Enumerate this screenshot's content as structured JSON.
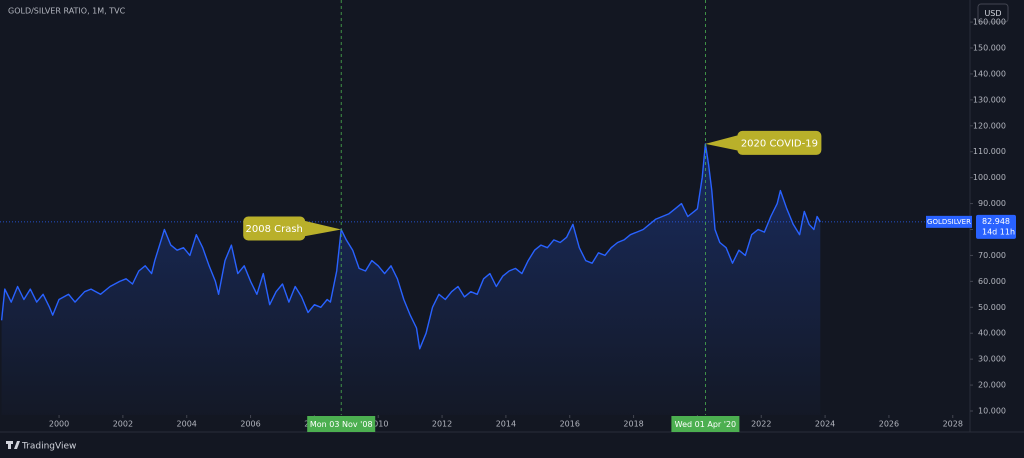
{
  "chart_data": {
    "type": "line",
    "title": "GOLD/SILVER RATIO, 1M, TVC",
    "currency": "USD",
    "brand": "TradingView",
    "x": [
      1998.2,
      1998.3,
      1998.5,
      1998.7,
      1998.9,
      1999.1,
      1999.3,
      1999.5,
      1999.7,
      1999.8,
      2000.0,
      2000.3,
      2000.5,
      2000.8,
      2001.0,
      2001.3,
      2001.6,
      2001.9,
      2002.1,
      2002.3,
      2002.5,
      2002.7,
      2002.9,
      2003.0,
      2003.2,
      2003.3,
      2003.5,
      2003.7,
      2003.9,
      2004.1,
      2004.3,
      2004.5,
      2004.7,
      2004.9,
      2005.0,
      2005.2,
      2005.4,
      2005.6,
      2005.8,
      2006.0,
      2006.2,
      2006.4,
      2006.6,
      2006.8,
      2007.0,
      2007.2,
      2007.4,
      2007.6,
      2007.8,
      2008.0,
      2008.2,
      2008.4,
      2008.5,
      2008.7,
      2008.84,
      2009.0,
      2009.2,
      2009.4,
      2009.6,
      2009.8,
      2010.0,
      2010.2,
      2010.4,
      2010.6,
      2010.8,
      2011.0,
      2011.2,
      2011.3,
      2011.5,
      2011.7,
      2011.9,
      2012.1,
      2012.3,
      2012.5,
      2012.7,
      2012.9,
      2013.1,
      2013.3,
      2013.5,
      2013.7,
      2013.9,
      2014.1,
      2014.3,
      2014.5,
      2014.7,
      2014.9,
      2015.1,
      2015.3,
      2015.5,
      2015.7,
      2015.9,
      2016.1,
      2016.3,
      2016.5,
      2016.7,
      2016.9,
      2017.1,
      2017.3,
      2017.5,
      2017.7,
      2017.9,
      2018.1,
      2018.3,
      2018.5,
      2018.7,
      2018.9,
      2019.1,
      2019.3,
      2019.5,
      2019.7,
      2019.9,
      2020.0,
      2020.15,
      2020.25,
      2020.35,
      2020.45,
      2020.55,
      2020.7,
      2020.9,
      2021.1,
      2021.3,
      2021.5,
      2021.7,
      2021.9,
      2022.1,
      2022.3,
      2022.5,
      2022.6,
      2022.8,
      2022.9,
      2023.0,
      2023.2,
      2023.35,
      2023.5,
      2023.65,
      2023.75,
      2023.85
    ],
    "series": [
      {
        "name": "GOLDSILVER",
        "color": "#2962ff",
        "values": [
          45,
          57,
          52,
          58,
          53,
          57,
          52,
          55,
          50,
          47,
          53,
          55,
          52,
          56,
          57,
          55,
          58,
          60,
          61,
          59,
          64,
          66,
          63,
          68,
          76,
          80,
          74,
          72,
          73,
          70,
          78,
          73,
          66,
          60,
          55,
          68,
          74,
          63,
          66,
          60,
          55,
          63,
          51,
          56,
          59,
          52,
          58,
          54,
          48,
          51,
          50,
          53,
          52,
          64,
          80,
          76,
          72,
          65,
          64,
          68,
          66,
          63,
          66,
          61,
          53,
          47,
          42,
          34,
          40,
          50,
          55,
          53,
          56,
          58,
          54,
          56,
          55,
          61,
          63,
          58,
          62,
          64,
          65,
          63,
          68,
          72,
          74,
          73,
          76,
          75,
          77,
          82,
          73,
          68,
          67,
          71,
          70,
          73,
          75,
          76,
          78,
          79,
          80,
          82,
          84,
          85,
          86,
          88,
          90,
          85,
          87,
          88,
          100,
          113,
          105,
          95,
          80,
          75,
          73,
          67,
          72,
          70,
          78,
          80,
          79,
          85,
          90,
          95,
          88,
          85,
          82,
          78,
          87,
          82,
          80,
          85,
          82.948
        ]
      }
    ],
    "countdown": "14d 11h",
    "xlim": [
      1998.15,
      2028.54
    ],
    "ylim": [
      8.46,
      168.51
    ],
    "xticks": [
      2000,
      2002,
      2004,
      2006,
      2008,
      2010,
      2012,
      2014,
      2016,
      2018,
      2020,
      2022,
      2024,
      2026,
      2028
    ],
    "yticks": [
      {
        "value": 10,
        "label": "10.000"
      },
      {
        "value": 20,
        "label": "20.000"
      },
      {
        "value": 30,
        "label": "30.000"
      },
      {
        "value": 40,
        "label": "40.000"
      },
      {
        "value": 50,
        "label": "50.000"
      },
      {
        "value": 60,
        "label": "60.000"
      },
      {
        "value": 70,
        "label": "70.000"
      },
      {
        "value": 80,
        "label": "80.000"
      },
      {
        "value": 90,
        "label": "90.000"
      },
      {
        "value": 100,
        "label": "100.000"
      },
      {
        "value": 110,
        "label": "110.000"
      },
      {
        "value": 120,
        "label": "120.000"
      },
      {
        "value": 130,
        "label": "130.000"
      },
      {
        "value": 140,
        "label": "140.000"
      },
      {
        "value": 150,
        "label": "150.000"
      },
      {
        "value": 160,
        "label": "160.000"
      }
    ],
    "markers": [
      {
        "x": 2008.84,
        "label": "Mon 03 Nov '08"
      },
      {
        "x": 2020.25,
        "label": "Wed 01 Apr '20"
      }
    ],
    "annotations": [
      {
        "text": "2008 Crash",
        "x": 2008.84,
        "y": 80
      },
      {
        "text": "2020 COVID-19",
        "x": 2020.25,
        "y": 113
      }
    ]
  }
}
